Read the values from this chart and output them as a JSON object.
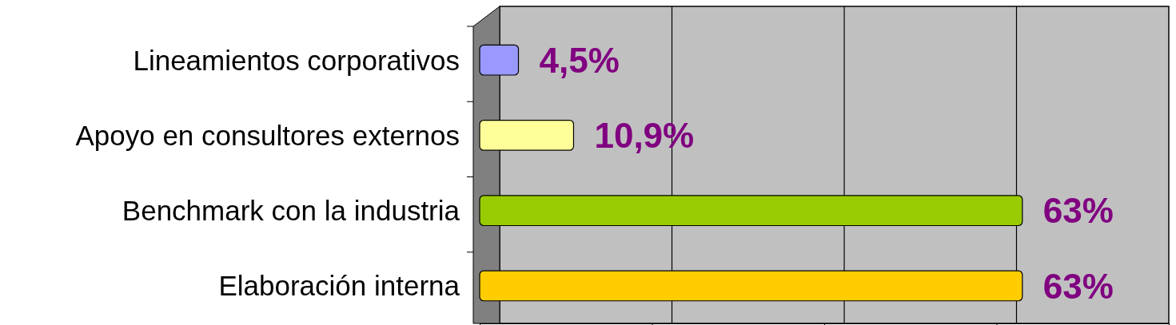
{
  "chart_data": {
    "type": "bar",
    "orientation": "horizontal",
    "categories": [
      "Lineamientos corporativos",
      "Apoyo en consultores externos",
      "Benchmark con la industria",
      "Elaboración interna"
    ],
    "values": [
      4.5,
      10.9,
      63,
      63
    ],
    "colors": [
      "#9999ff",
      "#ffff99",
      "#99cc00",
      "#ffcc00"
    ],
    "value_labels": [
      "4,5%",
      "10,9%",
      "63%",
      "63%"
    ],
    "xlim": [
      0,
      80
    ],
    "xticks": [
      {
        "value": 0,
        "label": null
      },
      {
        "value": 20,
        "label": null
      },
      {
        "value": 40,
        "label": null
      },
      {
        "value": 60,
        "label": null
      },
      {
        "value": 80,
        "label": null
      }
    ],
    "grid": "x"
  }
}
